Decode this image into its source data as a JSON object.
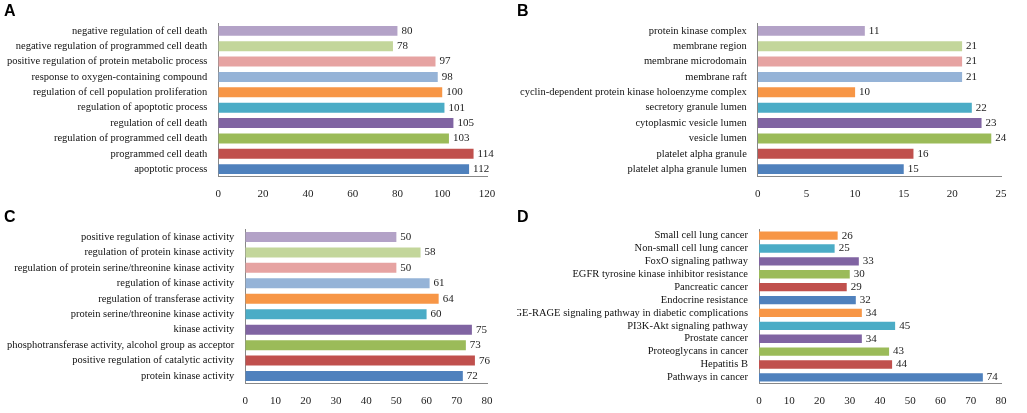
{
  "chart_data": [
    {
      "type": "bar",
      "title": "A",
      "orientation": "horizontal",
      "grid": false,
      "data_labels": true,
      "categories": [
        "negative regulation of cell death",
        "negative regulation of programmed cell death",
        "positive regulation of protein metabolic process",
        "response to oxygen-containing compound",
        "regulation of cell population proliferation",
        "regulation of apoptotic process",
        "regulation of cell death",
        "regulation of programmed cell death",
        "programmed cell death",
        "apoptotic process"
      ],
      "values": [
        80,
        78,
        97,
        98,
        100,
        101,
        105,
        103,
        114,
        112
      ],
      "colors": [
        "#b3a2c7",
        "#c3d69b",
        "#e6a3a2",
        "#95b3d7",
        "#f79646",
        "#4bacc6",
        "#8064a2",
        "#9bbb59",
        "#c0504d",
        "#4f81bd"
      ],
      "xlim": [
        0,
        120
      ],
      "xticks": [
        0,
        20,
        40,
        60,
        80,
        100,
        120
      ]
    },
    {
      "type": "bar",
      "title": "B",
      "orientation": "horizontal",
      "grid": false,
      "data_labels": true,
      "categories": [
        "protein kinase complex",
        "membrane region",
        "membrane microdomain",
        "membrane raft",
        "cyclin-dependent protein kinase holoenzyme complex",
        "secretory granule lumen",
        "cytoplasmic vesicle lumen",
        "vesicle lumen",
        "platelet alpha granule",
        "platelet alpha granule lumen"
      ],
      "values": [
        11,
        21,
        21,
        21,
        10,
        22,
        23,
        24,
        16,
        15
      ],
      "colors": [
        "#b3a2c7",
        "#c3d69b",
        "#e6a3a2",
        "#95b3d7",
        "#f79646",
        "#4bacc6",
        "#8064a2",
        "#9bbb59",
        "#c0504d",
        "#4f81bd"
      ],
      "xlim": [
        0,
        25
      ],
      "xticks": [
        0,
        5,
        10,
        15,
        20,
        25
      ]
    },
    {
      "type": "bar",
      "title": "C",
      "orientation": "horizontal",
      "grid": false,
      "data_labels": true,
      "categories": [
        "positive regulation of kinase activity",
        "regulation of protein kinase activity",
        "regulation of protein serine/threonine kinase activity",
        "regulation of kinase activity",
        "regulation of transferase activity",
        "protein serine/threonine kinase activity",
        "kinase activity",
        "phosphotransferase activity, alcohol group as acceptor",
        "positive regulation of catalytic activity",
        "protein kinase activity"
      ],
      "values": [
        50,
        58,
        50,
        61,
        64,
        60,
        75,
        73,
        76,
        72
      ],
      "colors": [
        "#b3a2c7",
        "#c3d69b",
        "#e6a3a2",
        "#95b3d7",
        "#f79646",
        "#4bacc6",
        "#8064a2",
        "#9bbb59",
        "#c0504d",
        "#4f81bd"
      ],
      "xlim": [
        0,
        80
      ],
      "xticks": [
        0,
        10,
        20,
        30,
        40,
        50,
        60,
        70,
        80
      ]
    },
    {
      "type": "bar",
      "title": "D",
      "orientation": "horizontal",
      "grid": false,
      "data_labels": true,
      "categories": [
        "Small cell lung cancer",
        "Non-small cell lung cancer",
        "FoxO signaling pathway",
        "EGFR tyrosine kinase inhibitor resistance",
        "Pancreatic cancer",
        "Endocrine resistance",
        "AGE-RAGE signaling pathway in diabetic complications",
        "PI3K-Akt signaling pathway",
        "Prostate cancer",
        "Proteoglycans in cancer",
        "Hepatitis B",
        "Pathways in cancer"
      ],
      "values": [
        26,
        25,
        33,
        30,
        29,
        32,
        34,
        45,
        34,
        43,
        44,
        74
      ],
      "colors": [
        "#f79646",
        "#4bacc6",
        "#8064a2",
        "#9bbb59",
        "#c0504d",
        "#4f81bd",
        "#f79646",
        "#4bacc6",
        "#8064a2",
        "#9bbb59",
        "#c0504d",
        "#4f81bd"
      ],
      "xlim": [
        0,
        80
      ],
      "xticks": [
        0,
        10,
        20,
        30,
        40,
        50,
        60,
        70,
        80
      ]
    }
  ]
}
